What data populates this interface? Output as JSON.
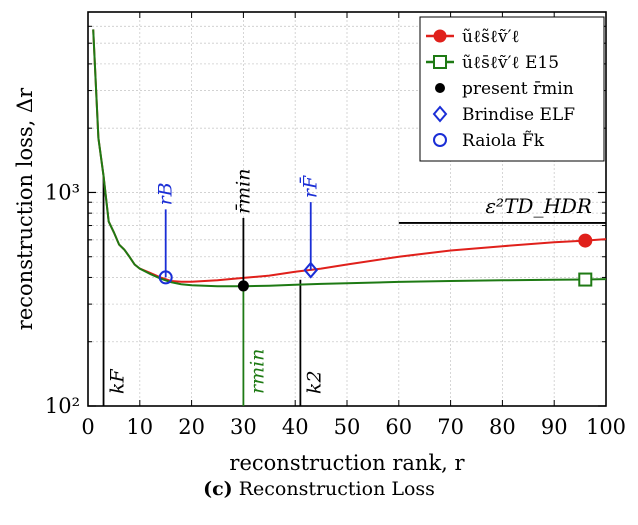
{
  "chart_data": {
    "type": "line",
    "xlabel": "reconstruction rank, r",
    "ylabel": "reconstruction loss, Δr",
    "xlim": [
      0,
      100
    ],
    "ylim": [
      100,
      7000
    ],
    "yscale": "log",
    "grid": true,
    "xticks": [
      "0",
      "10",
      "20",
      "30",
      "40",
      "50",
      "60",
      "70",
      "80",
      "90",
      "100"
    ],
    "xtick_values": [
      0,
      10,
      20,
      30,
      40,
      50,
      60,
      70,
      80,
      90,
      100
    ],
    "yticks": [
      "10²",
      "10³"
    ],
    "ytick_values": [
      100,
      1000
    ],
    "legend_position": "top-right",
    "series": [
      {
        "name": "ũℓs̃ℓṽ′ℓ",
        "color": "#e0201b",
        "end_marker": "filled-circle",
        "x": [
          1,
          2,
          3,
          4,
          5,
          6,
          7,
          8,
          9,
          10,
          12,
          14,
          16,
          18,
          20,
          25,
          30,
          35,
          40,
          45,
          50,
          60,
          70,
          80,
          90,
          96,
          100
        ],
        "y": [
          5800,
          1800,
          1200,
          730,
          650,
          570,
          540,
          500,
          460,
          440,
          420,
          400,
          385,
          382,
          382,
          388,
          398,
          408,
          425,
          440,
          460,
          500,
          535,
          560,
          585,
          595,
          605
        ]
      },
      {
        "name": "ũℓs̄ℓṽ′ℓ E15",
        "color": "#1e7a14",
        "end_marker": "open-square",
        "x": [
          1,
          2,
          3,
          4,
          5,
          6,
          7,
          8,
          9,
          10,
          12,
          14,
          16,
          18,
          20,
          25,
          30,
          35,
          40,
          45,
          50,
          60,
          70,
          80,
          90,
          96,
          100
        ],
        "y": [
          5800,
          1800,
          1200,
          730,
          650,
          570,
          540,
          500,
          460,
          440,
          415,
          395,
          380,
          372,
          368,
          364,
          364,
          366,
          370,
          373,
          376,
          381,
          385,
          388,
          390,
          391,
          393
        ]
      }
    ],
    "markers": [
      {
        "name": "present r̄min",
        "x": 30,
        "y": 365,
        "color": "#000000",
        "style": "filled-circle",
        "label": "r̄min",
        "label_color": "#000000"
      },
      {
        "name": "Brindise ELF",
        "x": 43,
        "y": 433,
        "color": "#1a2ed6",
        "style": "open-diamond",
        "label": "rF̄",
        "label_color": "#1a2ed6"
      },
      {
        "name": "Raiola F̃k",
        "x": 15,
        "y": 400,
        "color": "#1a2ed6",
        "style": "open-circle",
        "label": "rB",
        "label_color": "#1a2ed6"
      }
    ],
    "vertical_lines": [
      {
        "label": "kF",
        "x": 3,
        "color": "#000000"
      },
      {
        "label": "rmin",
        "x": 30,
        "color": "#1e7a14"
      },
      {
        "label": "k2",
        "x": 41,
        "color": "#000000"
      }
    ],
    "annotation": {
      "label": "ε²TD_HDR",
      "x_start": 60,
      "x_end": 100,
      "y": 720
    }
  },
  "legend": {
    "entries": [
      {
        "text": "ũℓs̃ℓṽ′ℓ",
        "color": "#e0201b",
        "symbol": "line-filled-circle"
      },
      {
        "text": "ũℓs̄ℓṽ′ℓ E15",
        "color": "#1e7a14",
        "symbol": "line-open-square"
      },
      {
        "text": "present r̄min",
        "color": "#000000",
        "symbol": "filled-circle"
      },
      {
        "text": "Brindise ELF",
        "color": "#1a2ed6",
        "symbol": "open-diamond"
      },
      {
        "text": "Raiola F̃k",
        "color": "#1a2ed6",
        "symbol": "open-circle"
      }
    ]
  },
  "caption": {
    "tag": "(c)",
    "text": "Reconstruction Loss"
  }
}
